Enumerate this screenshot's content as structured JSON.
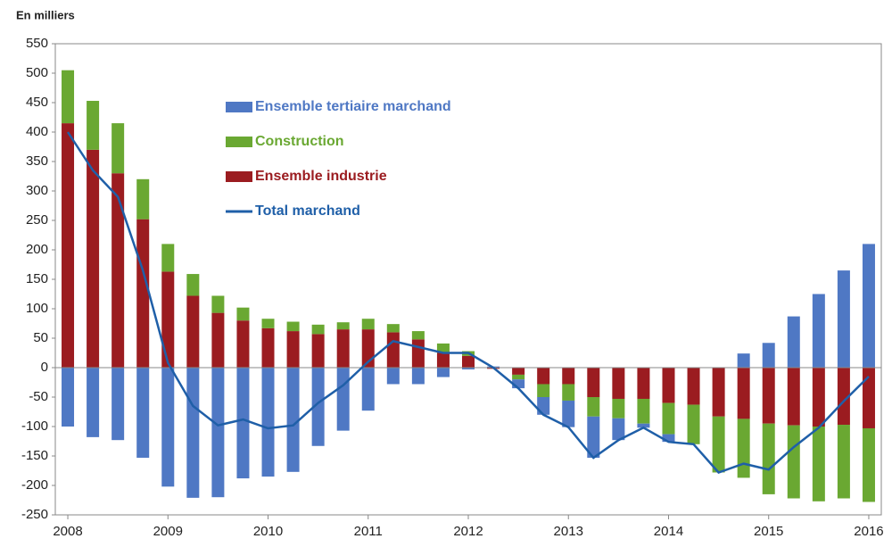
{
  "chart_data": {
    "type": "bar",
    "y_label": "En milliers",
    "categories": [
      "2008",
      null,
      null,
      null,
      "2009",
      null,
      null,
      null,
      "2010",
      null,
      null,
      null,
      "2011",
      null,
      null,
      null,
      "2012",
      null,
      null,
      null,
      "2013",
      null,
      null,
      null,
      "2014",
      null,
      null,
      null,
      "2015",
      null,
      null,
      null,
      "2016"
    ],
    "series": [
      {
        "name": "Ensemble tertiaire marchand",
        "color": "#4f78c4",
        "type": "bar",
        "values": [
          -100,
          -118,
          -123,
          -153,
          -202,
          -221,
          -220,
          -188,
          -185,
          -177,
          -133,
          -107,
          -73,
          -28,
          -28,
          -16,
          -3,
          2,
          -15,
          -30,
          -45,
          -70,
          -37,
          -7,
          -13,
          0,
          0,
          24,
          42,
          87,
          125,
          165,
          210
        ]
      },
      {
        "name": "Construction",
        "color": "#6aa832",
        "type": "bar",
        "values": [
          90,
          83,
          85,
          68,
          47,
          37,
          29,
          22,
          16,
          16,
          16,
          12,
          18,
          14,
          14,
          16,
          8,
          0,
          -8,
          -22,
          -28,
          -33,
          -33,
          -42,
          -53,
          -67,
          -95,
          -100,
          -120,
          -124,
          -127,
          -125,
          -125
        ]
      },
      {
        "name": "Ensemble industrie",
        "color": "#9b1c20",
        "type": "bar",
        "values": [
          415,
          370,
          330,
          252,
          163,
          122,
          93,
          80,
          67,
          62,
          57,
          65,
          65,
          60,
          48,
          25,
          20,
          -2,
          -12,
          -28,
          -28,
          -50,
          -53,
          -53,
          -60,
          -63,
          -83,
          -87,
          -95,
          -98,
          -100,
          -97,
          -103
        ]
      },
      {
        "name": "Total marchand",
        "color": "#1f5fa8",
        "type": "line",
        "values": [
          400,
          335,
          290,
          165,
          8,
          -65,
          -98,
          -88,
          -103,
          -98,
          -60,
          -30,
          10,
          45,
          35,
          25,
          25,
          0,
          -35,
          -80,
          -101,
          -153,
          -123,
          -102,
          -126,
          -130,
          -178,
          -163,
          -173,
          -135,
          -102,
          -57,
          -15
        ]
      }
    ],
    "ylim": [
      -250,
      550
    ],
    "yticks": [
      -250,
      -200,
      -150,
      -100,
      -50,
      0,
      50,
      100,
      150,
      200,
      250,
      300,
      350,
      400,
      450,
      500,
      550
    ],
    "grid": false,
    "legend": "top-left"
  }
}
